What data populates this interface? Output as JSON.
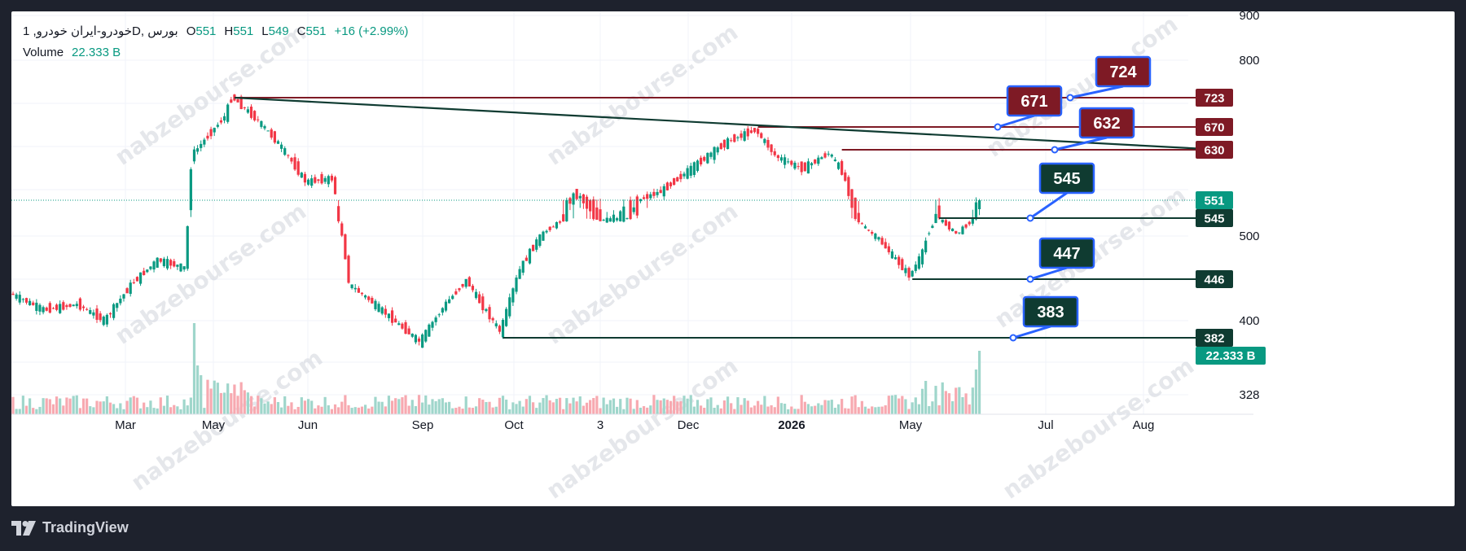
{
  "legend": {
    "symbol": "خودرو-ایران خودرو, 1D, بورس",
    "open_key": "O",
    "open": "551",
    "high_key": "H",
    "high": "551",
    "low_key": "L",
    "low": "549",
    "close_key": "C",
    "close": "551",
    "change": "+16 (+2.99%)",
    "volume_label": "Volume",
    "volume_value": "22.333 B"
  },
  "branding": {
    "name": "TradingView"
  },
  "watermark": "nabzebourse.com",
  "colors": {
    "up": "#089981",
    "down": "#f23645",
    "resistance": "#7e1a25",
    "support": "#0f3b31",
    "callout_border": "#2962ff",
    "trendline": "#0f3b31",
    "volume_up": "#9fd6cb",
    "volume_down": "#f7a9b0",
    "background": "#ffffff",
    "frame": "#1e222d"
  },
  "chart_data": {
    "type": "candlestick",
    "y_axis_ticks": [
      900,
      800,
      500,
      400,
      328
    ],
    "x_axis_labels": [
      "Mar",
      "May",
      "Jun",
      "Sep",
      "Oct",
      "3",
      "Dec",
      "2026",
      "May",
      "Jul",
      "Aug"
    ],
    "last_price": 551,
    "last_volume": "22.333 B",
    "price_scale_labels": [
      {
        "value": 723,
        "kind": "resistance"
      },
      {
        "value": 670,
        "kind": "resistance"
      },
      {
        "value": 630,
        "kind": "resistance"
      },
      {
        "value": 551,
        "kind": "last"
      },
      {
        "value": 545,
        "kind": "support"
      },
      {
        "value": 446,
        "kind": "support"
      },
      {
        "value": 382,
        "kind": "support"
      }
    ],
    "callouts": [
      {
        "label": "724",
        "level": 723,
        "kind": "resistance"
      },
      {
        "label": "671",
        "level": 670,
        "kind": "resistance"
      },
      {
        "label": "632",
        "level": 630,
        "kind": "resistance"
      },
      {
        "label": "545",
        "level": 545,
        "kind": "support"
      },
      {
        "label": "447",
        "level": 446,
        "kind": "support"
      },
      {
        "label": "383",
        "level": 382,
        "kind": "support"
      }
    ],
    "series_path": [
      {
        "t": 0,
        "p": 430
      },
      {
        "t": 10,
        "p": 412
      },
      {
        "t": 20,
        "p": 418
      },
      {
        "t": 28,
        "p": 400
      },
      {
        "t": 36,
        "p": 440
      },
      {
        "t": 44,
        "p": 470
      },
      {
        "t": 52,
        "p": 460
      },
      {
        "t": 54,
        "p": 620
      },
      {
        "t": 64,
        "p": 690
      },
      {
        "t": 66,
        "p": 725
      },
      {
        "t": 74,
        "p": 680
      },
      {
        "t": 80,
        "p": 640
      },
      {
        "t": 88,
        "p": 580
      },
      {
        "t": 96,
        "p": 585
      },
      {
        "t": 101,
        "p": 440
      },
      {
        "t": 108,
        "p": 420
      },
      {
        "t": 116,
        "p": 395
      },
      {
        "t": 122,
        "p": 378
      },
      {
        "t": 130,
        "p": 420
      },
      {
        "t": 136,
        "p": 445
      },
      {
        "t": 140,
        "p": 420
      },
      {
        "t": 146,
        "p": 388
      },
      {
        "t": 152,
        "p": 460
      },
      {
        "t": 160,
        "p": 515
      },
      {
        "t": 168,
        "p": 560
      },
      {
        "t": 176,
        "p": 540
      },
      {
        "t": 184,
        "p": 545
      },
      {
        "t": 194,
        "p": 565
      },
      {
        "t": 204,
        "p": 605
      },
      {
        "t": 214,
        "p": 645
      },
      {
        "t": 222,
        "p": 665
      },
      {
        "t": 228,
        "p": 620
      },
      {
        "t": 236,
        "p": 600
      },
      {
        "t": 244,
        "p": 625
      },
      {
        "t": 248,
        "p": 595
      },
      {
        "t": 250,
        "p": 560
      },
      {
        "t": 256,
        "p": 510
      },
      {
        "t": 264,
        "p": 470
      },
      {
        "t": 268,
        "p": 450
      },
      {
        "t": 272,
        "p": 480
      },
      {
        "t": 276,
        "p": 550
      },
      {
        "t": 282,
        "p": 505
      },
      {
        "t": 288,
        "p": 551
      }
    ]
  }
}
